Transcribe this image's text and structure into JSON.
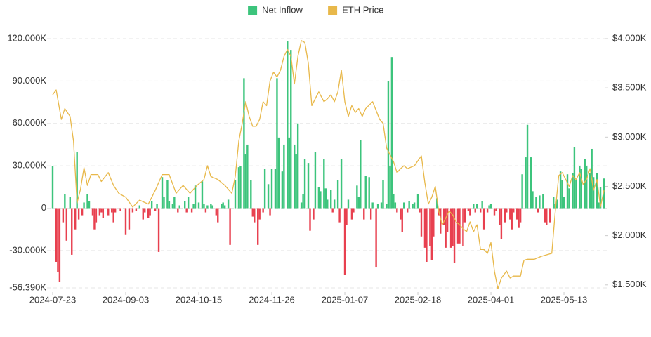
{
  "chart_data": {
    "type": "bar",
    "legend": "top",
    "grid": true,
    "xlim": [
      "2024-07-23",
      "2025-06-05"
    ],
    "xticks": [
      "2024-07-23",
      "2024-09-03",
      "2024-10-15",
      "2024-11-26",
      "2025-01-07",
      "2025-02-18",
      "2025-04-01",
      "2025-05-13"
    ],
    "ylim": [
      -56390,
      120000
    ],
    "yticks": [
      {
        "value": 120000,
        "label": "120.000K"
      },
      {
        "value": 90000,
        "label": "90.000K"
      },
      {
        "value": 60000,
        "label": "60.000K"
      },
      {
        "value": 30000,
        "label": "30.000K"
      },
      0,
      {
        "value": -30000,
        "label": "-30.000K"
      },
      {
        "value": -56390,
        "label": "-56.390K"
      }
    ],
    "y2lim": [
      1470,
      4000
    ],
    "y2ticks": [
      {
        "value": 4000,
        "label": "$4.000K"
      },
      {
        "value": 3500,
        "label": "$3.500K"
      },
      {
        "value": 3000,
        "label": "$3.000K"
      },
      {
        "value": 2500,
        "label": "$2.500K"
      },
      {
        "value": 2000,
        "label": "$2.000K"
      },
      {
        "value": 1500,
        "label": "$1.500K"
      }
    ],
    "series": [
      {
        "name": "Net Inflow",
        "type": "bar",
        "color": "#3cc47c",
        "negative_color": "#e8404f",
        "x": [
          "2024-07-23",
          "2024-07-25",
          "2024-07-26",
          "2024-07-27",
          "2024-07-29",
          "2024-07-30",
          "2024-07-31",
          "2024-08-02",
          "2024-08-03",
          "2024-08-05",
          "2024-08-06",
          "2024-08-07",
          "2024-08-09",
          "2024-08-10",
          "2024-08-12",
          "2024-08-13",
          "2024-08-15",
          "2024-08-16",
          "2024-08-17",
          "2024-08-19",
          "2024-08-20",
          "2024-08-21",
          "2024-08-24",
          "2024-08-26",
          "2024-08-27",
          "2024-08-28",
          "2024-08-31",
          "2024-09-03",
          "2024-09-05",
          "2024-09-07",
          "2024-09-09",
          "2024-09-11",
          "2024-09-13",
          "2024-09-14",
          "2024-09-16",
          "2024-09-17",
          "2024-09-18",
          "2024-09-20",
          "2024-09-21",
          "2024-09-22",
          "2024-09-24",
          "2024-09-25",
          "2024-09-27",
          "2024-09-28",
          "2024-09-30",
          "2024-10-01",
          "2024-10-03",
          "2024-10-04",
          "2024-10-07",
          "2024-10-08",
          "2024-10-09",
          "2024-10-11",
          "2024-10-12",
          "2024-10-13",
          "2024-10-15",
          "2024-10-17",
          "2024-10-18",
          "2024-10-19",
          "2024-10-20",
          "2024-10-22",
          "2024-10-23",
          "2024-10-25",
          "2024-10-26",
          "2024-10-28",
          "2024-10-29",
          "2024-10-30",
          "2024-11-01",
          "2024-11-02",
          "2024-11-05",
          "2024-11-07",
          "2024-11-08",
          "2024-11-10",
          "2024-11-11",
          "2024-11-12",
          "2024-11-14",
          "2024-11-15",
          "2024-11-16",
          "2024-11-18",
          "2024-11-19",
          "2024-11-21",
          "2024-11-22",
          "2024-11-24",
          "2024-11-25",
          "2024-11-26",
          "2024-11-28",
          "2024-11-29",
          "2024-11-30",
          "2024-12-02",
          "2024-12-03",
          "2024-12-05",
          "2024-12-06",
          "2024-12-07",
          "2024-12-09",
          "2024-12-10",
          "2024-12-11",
          "2024-12-13",
          "2024-12-14",
          "2024-12-15",
          "2024-12-17",
          "2024-12-18",
          "2024-12-20",
          "2024-12-21",
          "2024-12-23",
          "2024-12-24",
          "2024-12-26",
          "2024-12-27",
          "2024-12-28",
          "2024-12-30",
          "2024-12-31",
          "2025-01-01",
          "2025-01-03",
          "2025-01-04",
          "2025-01-05",
          "2025-01-07",
          "2025-01-08",
          "2025-01-09",
          "2025-01-11",
          "2025-01-12",
          "2025-01-14",
          "2025-01-15",
          "2025-01-16",
          "2025-01-18",
          "2025-01-19",
          "2025-01-21",
          "2025-01-22",
          "2025-01-23",
          "2025-01-25",
          "2025-01-26",
          "2025-01-28",
          "2025-01-29",
          "2025-01-31",
          "2025-02-01",
          "2025-02-02",
          "2025-02-03",
          "2025-02-04",
          "2025-02-05",
          "2025-02-06",
          "2025-02-08",
          "2025-02-09",
          "2025-02-10",
          "2025-02-12",
          "2025-02-13",
          "2025-02-15",
          "2025-02-16",
          "2025-02-18",
          "2025-02-19",
          "2025-02-20",
          "2025-02-22",
          "2025-02-23",
          "2025-02-25",
          "2025-02-26",
          "2025-02-27",
          "2025-03-01",
          "2025-03-02",
          "2025-03-03",
          "2025-03-05",
          "2025-03-06",
          "2025-03-07",
          "2025-03-09",
          "2025-03-10",
          "2025-03-11",
          "2025-03-13",
          "2025-03-14",
          "2025-03-16",
          "2025-03-17",
          "2025-03-19",
          "2025-03-20",
          "2025-03-22",
          "2025-03-23",
          "2025-03-24",
          "2025-03-26",
          "2025-03-27",
          "2025-03-28",
          "2025-03-30",
          "2025-03-31",
          "2025-04-01",
          "2025-04-03",
          "2025-04-04",
          "2025-04-06",
          "2025-04-07",
          "2025-04-09",
          "2025-04-10",
          "2025-04-12",
          "2025-04-13",
          "2025-04-14",
          "2025-04-16",
          "2025-04-17",
          "2025-04-18",
          "2025-04-19",
          "2025-04-21",
          "2025-04-22",
          "2025-04-24",
          "2025-04-25",
          "2025-04-27",
          "2025-04-28",
          "2025-04-29",
          "2025-05-01",
          "2025-05-02",
          "2025-05-03",
          "2025-05-05",
          "2025-05-07",
          "2025-05-08",
          "2025-05-09",
          "2025-05-11",
          "2025-05-12",
          "2025-05-13",
          "2025-05-15",
          "2025-05-16",
          "2025-05-18",
          "2025-05-19",
          "2025-05-20",
          "2025-05-22",
          "2025-05-23",
          "2025-05-25",
          "2025-05-26",
          "2025-05-28",
          "2025-05-29",
          "2025-05-30",
          "2025-06-01",
          "2025-06-02",
          "2025-06-03",
          "2025-06-05"
        ],
        "values": [
          30000,
          -38000,
          -45000,
          -52000,
          -10000,
          10000,
          -23000,
          8000,
          -33000,
          -15000,
          40000,
          -8000,
          -5000,
          4000,
          10000,
          5000,
          -5000,
          -15000,
          -10000,
          -5000,
          -3000,
          -7000,
          -5000,
          -3000,
          -10000,
          -3000,
          -2000,
          -19000,
          -15000,
          -3000,
          -2000,
          2000,
          -8000,
          -3000,
          -7000,
          -5000,
          5000,
          -2000,
          3000,
          -31000,
          22000,
          8000,
          20000,
          5000,
          3000,
          8000,
          -3000,
          2000,
          5000,
          -3000,
          8000,
          -3000,
          3000,
          16000,
          4000,
          19000,
          3000,
          -3000,
          2000,
          3000,
          2000,
          -5000,
          -10000,
          3000,
          4000,
          2000,
          6000,
          -26000,
          20000,
          29000,
          30000,
          92000,
          38000,
          45000,
          20000,
          -6000,
          -10000,
          -26000,
          -8000,
          -3000,
          28000,
          17000,
          -5000,
          28000,
          28000,
          92000,
          50000,
          26000,
          45000,
          118000,
          50000,
          112000,
          45000,
          38000,
          60000,
          4000,
          10000,
          35000,
          32000,
          -16000,
          -8000,
          40000,
          15000,
          12000,
          35000,
          14000,
          6000,
          13000,
          -3000,
          6000,
          20000,
          -10000,
          35000,
          -47000,
          -12000,
          6000,
          -8000,
          -3000,
          16000,
          8000,
          48000,
          -8000,
          23000,
          22000,
          -8000,
          4000,
          -42000,
          3000,
          4000,
          20000,
          3000,
          90000,
          30000,
          107000,
          10000,
          4000,
          -3000,
          -8000,
          -17000,
          4000,
          -3000,
          5000,
          3000,
          4000,
          10000,
          -3000,
          -20000,
          -28000,
          -38000,
          -27000,
          -37000,
          -20000,
          7000,
          -5000,
          -18000,
          -12000,
          -28000,
          -17000,
          -28000,
          -27000,
          -39000,
          -25000,
          -25000,
          -27000,
          -10000,
          -2000,
          -5000,
          3000,
          -3000,
          3000,
          -3000,
          5000,
          -15000,
          -3000,
          2000,
          3000,
          -5000,
          -2000,
          -12000,
          -22000,
          -10000,
          -3000,
          -8000,
          -15000,
          -3000,
          -8000,
          -14000,
          -10000,
          24000,
          36000,
          59000,
          36000,
          12000,
          8000,
          -3000,
          9000,
          10000,
          -10000,
          -12000,
          -10000,
          8000,
          3000,
          6000,
          26000,
          20000,
          8000,
          24000,
          14000,
          25000,
          43000,
          20000,
          30000,
          28000,
          35000,
          30000,
          25000,
          42000,
          22000,
          25000,
          4000,
          15000,
          21000
        ]
      },
      {
        "name": "ETH Price",
        "type": "line",
        "axis": "y2",
        "color": "#e8b84a",
        "x": [
          "2024-07-23",
          "2024-07-25",
          "2024-07-28",
          "2024-07-30",
          "2024-08-02",
          "2024-08-04",
          "2024-08-06",
          "2024-08-08",
          "2024-08-10",
          "2024-08-12",
          "2024-08-14",
          "2024-08-18",
          "2024-08-20",
          "2024-08-24",
          "2024-08-27",
          "2024-08-30",
          "2024-09-03",
          "2024-09-07",
          "2024-09-11",
          "2024-09-16",
          "2024-09-20",
          "2024-09-24",
          "2024-09-28",
          "2024-10-02",
          "2024-10-06",
          "2024-10-10",
          "2024-10-14",
          "2024-10-18",
          "2024-10-20",
          "2024-10-22",
          "2024-10-26",
          "2024-10-30",
          "2024-11-03",
          "2024-11-05",
          "2024-11-07",
          "2024-11-09",
          "2024-11-11",
          "2024-11-13",
          "2024-11-15",
          "2024-11-17",
          "2024-11-19",
          "2024-11-21",
          "2024-11-23",
          "2024-11-25",
          "2024-11-27",
          "2024-11-29",
          "2024-12-01",
          "2024-12-03",
          "2024-12-05",
          "2024-12-07",
          "2024-12-09",
          "2024-12-11",
          "2024-12-13",
          "2024-12-15",
          "2024-12-17",
          "2024-12-19",
          "2024-12-21",
          "2024-12-23",
          "2024-12-26",
          "2024-12-28",
          "2024-12-30",
          "2025-01-01",
          "2025-01-03",
          "2025-01-05",
          "2025-01-07",
          "2025-01-09",
          "2025-01-11",
          "2025-01-13",
          "2025-01-15",
          "2025-01-17",
          "2025-01-19",
          "2025-01-23",
          "2025-01-27",
          "2025-01-29",
          "2025-01-31",
          "2025-02-02",
          "2025-02-04",
          "2025-02-06",
          "2025-02-08",
          "2025-02-10",
          "2025-02-12",
          "2025-02-16",
          "2025-02-20",
          "2025-02-22",
          "2025-02-24",
          "2025-02-26",
          "2025-02-28",
          "2025-03-02",
          "2025-03-04",
          "2025-03-06",
          "2025-03-08",
          "2025-03-10",
          "2025-03-12",
          "2025-03-14",
          "2025-03-16",
          "2025-03-18",
          "2025-03-20",
          "2025-03-22",
          "2025-03-24",
          "2025-03-26",
          "2025-03-28",
          "2025-03-30",
          "2025-04-01",
          "2025-04-03",
          "2025-04-05",
          "2025-04-07",
          "2025-04-10",
          "2025-04-12",
          "2025-04-14",
          "2025-04-18",
          "2025-04-20",
          "2025-04-22",
          "2025-04-26",
          "2025-04-30",
          "2025-05-06",
          "2025-05-08",
          "2025-05-10",
          "2025-05-12",
          "2025-05-16",
          "2025-05-18",
          "2025-05-20",
          "2025-05-22",
          "2025-05-24",
          "2025-05-26",
          "2025-05-28",
          "2025-05-30",
          "2025-06-01",
          "2025-06-03",
          "2025-06-05"
        ],
        "values": [
          3430,
          3480,
          3180,
          3290,
          3210,
          2960,
          2330,
          2470,
          2690,
          2510,
          2620,
          2620,
          2550,
          2640,
          2510,
          2430,
          2390,
          2290,
          2360,
          2320,
          2460,
          2620,
          2620,
          2430,
          2510,
          2430,
          2510,
          2570,
          2710,
          2600,
          2570,
          2510,
          2430,
          2600,
          2960,
          3140,
          3360,
          3210,
          3110,
          3110,
          3180,
          3360,
          3320,
          3570,
          3660,
          3610,
          3680,
          3820,
          3890,
          3820,
          3540,
          3820,
          3980,
          3960,
          3750,
          3320,
          3390,
          3460,
          3360,
          3390,
          3430,
          3360,
          3460,
          3680,
          3360,
          3210,
          3320,
          3250,
          3290,
          3210,
          3290,
          3360,
          3180,
          3140,
          2890,
          2820,
          2750,
          2640,
          2680,
          2710,
          2680,
          2710,
          2810,
          2540,
          2320,
          2390,
          2500,
          2250,
          2110,
          2180,
          2250,
          2210,
          2140,
          2110,
          2070,
          2040,
          2140,
          2040,
          2110,
          1860,
          1860,
          1820,
          1930,
          1640,
          1460,
          1570,
          1640,
          1570,
          1590,
          1590,
          1750,
          1760,
          1760,
          1790,
          1820,
          2250,
          2610,
          2640,
          2500,
          2610,
          2570,
          2640,
          2520,
          2570,
          2680,
          2460,
          2570,
          2290,
          2460
        ]
      }
    ]
  }
}
